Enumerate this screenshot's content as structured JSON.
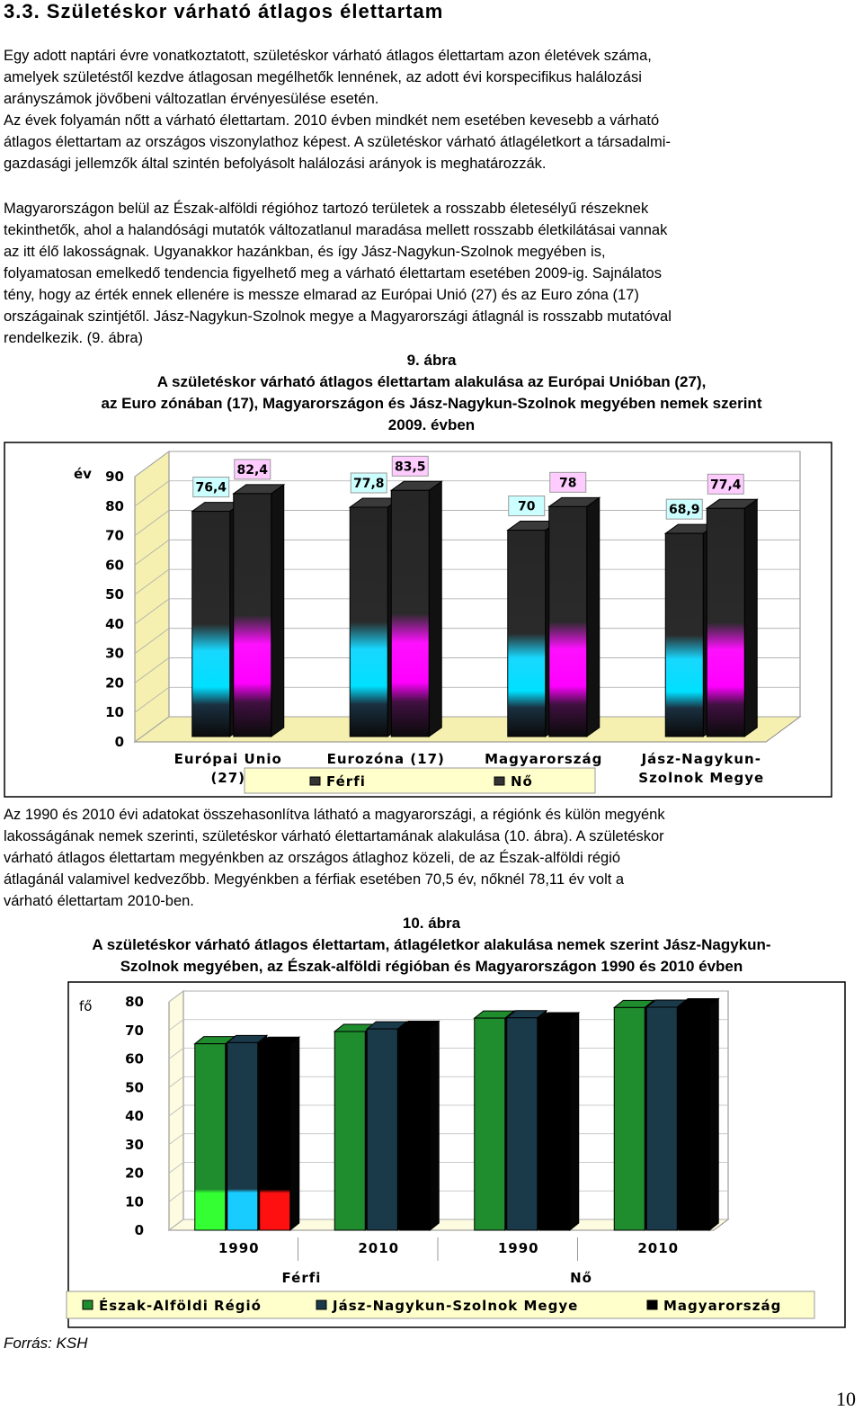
{
  "heading": "3.3. Születéskor várható átlagos élettartam",
  "para1": [
    "Egy adott naptári évre vonatkoztatott, születéskor várható átlagos élettartam azon életévek száma,",
    "amelyek születéstől kezdve átlagosan megélhetők lennének, az adott évi korspecifikus halálozási",
    "arányszámok jövőbeni változatlan érvényesülése esetén.",
    "Az évek folyamán nőtt a várható élettartam. 2010 évben mindkét nem esetében kevesebb a várható",
    "átlagos élettartam az országos viszonylathoz képest. A születéskor várható átlagéletkort a társadalmi-",
    "gazdasági jellemzők által szintén befolyásolt halálozási arányok is meghatározzák."
  ],
  "para2": [
    "Magyarországon belül az Észak-alföldi régióhoz tartozó területek a rosszabb életesélyű részeknek",
    "tekinthetők, ahol a halandósági mutatók változatlanul maradása mellett rosszabb életkilátásai vannak",
    "az itt élő lakosságnak. Ugyanakkor hazánkban, és így Jász-Nagykun-Szolnok megyében is,",
    "folyamatosan emelkedő tendencia figyelhető meg a várható élettartam esetében 2009-ig. Sajnálatos",
    "tény, hogy az érték ennek ellenére is messze elmarad az Európai Unió (27) és az Euro zóna (17)",
    "országainak szintjétől. Jász-Nagykun-Szolnok megye a Magyarországi átlagnál is rosszabb mutatóval",
    "rendelkezik. (9. ábra)"
  ],
  "fig9": {
    "number": "9. ábra",
    "caption": [
      "A születéskor várható átlagos élettartam alakulása az Európai Unióban (27),",
      "az Euro zónában (17), Magyarországon és Jász-Nagykun-Szolnok megyében nemek szerint",
      "2009. évben"
    ]
  },
  "para3": [
    "Az 1990 és 2010 évi adatokat összehasonlítva látható a magyarországi, a régiónk és külön megyénk",
    "lakosságának nemek szerinti, születéskor várható élettartamának alakulása (10. ábra). A születéskor",
    "várható átlagos élettartam megyénkben az országos átlaghoz közeli, de az Észak-alföldi régió",
    "átlagánál valamivel kedvezőbb. Megyénkben a férfiak esetében 70,5 év, nőknél 78,11 év volt a",
    "várható élettartam 2010-ben."
  ],
  "fig10": {
    "number": "10. ábra",
    "caption": [
      "A születéskor várható átlagos élettartam, átlagéletkor alakulása nemek szerint Jász-Nagykun-",
      "Szolnok megyében, az Észak-alföldi régióban és Magyarországon 1990 és 2010 évben"
    ]
  },
  "source": "Forrás: KSH",
  "page_number": "10",
  "chart_data": [
    {
      "type": "bar",
      "title": "",
      "ylabel": "év",
      "ylim": [
        0,
        90
      ],
      "yticks": [
        0,
        10,
        20,
        30,
        40,
        50,
        60,
        70,
        80,
        90
      ],
      "categories": [
        [
          "Európai Unio",
          "(27)"
        ],
        [
          "Eurozóna (17)"
        ],
        [
          "Magyarország"
        ],
        [
          "Jász-Nagykun-",
          "Szolnok Megye"
        ]
      ],
      "series": [
        {
          "name": "Férfi",
          "values": [
            76.4,
            77.8,
            70,
            68.9
          ],
          "labels": [
            "76,4",
            "77,8",
            "70",
            "68,9"
          ],
          "label_bg": "#ccffff"
        },
        {
          "name": "Nő",
          "values": [
            82.4,
            83.5,
            78,
            77.4
          ],
          "labels": [
            "82,4",
            "83,5",
            "78",
            "77,4"
          ],
          "label_bg": "#ffccff"
        }
      ],
      "legend_position": "bottom"
    },
    {
      "type": "bar",
      "title": "",
      "ylabel": "fő",
      "ylim": [
        0,
        80
      ],
      "yticks": [
        0,
        10,
        20,
        30,
        40,
        50,
        60,
        70,
        80
      ],
      "categories": [
        "1990",
        "2010",
        "1990",
        "2010"
      ],
      "groups": [
        "Férfi",
        "Nő"
      ],
      "series": [
        {
          "name": "Észak-Alföldi Régió",
          "color": "#1f8c2e",
          "values": [
            65.3,
            69.6,
            74.3,
            78
          ]
        },
        {
          "name": "Jász-Nagykun-Szolnok Megye",
          "color": "#1a3a4a",
          "values": [
            65.7,
            70.5,
            74.4,
            78.11
          ]
        },
        {
          "name": "Magyarország",
          "color": "#000000",
          "values": [
            65.1,
            70.7,
            73.7,
            78.6
          ]
        }
      ],
      "legend_position": "bottom"
    }
  ]
}
